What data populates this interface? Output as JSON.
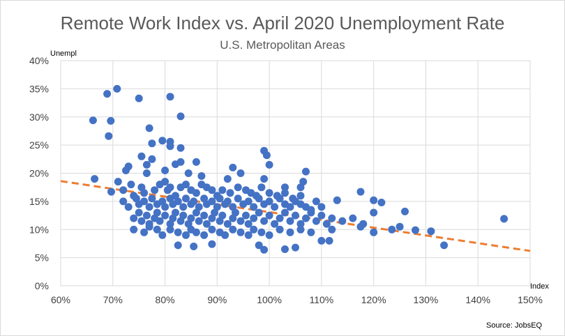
{
  "chart_data": {
    "type": "scatter",
    "title": "Remote Work Index vs. April 2020 Unemployment Rate",
    "subtitle": "U.S. Metropolitan Areas",
    "xlabel": "Index",
    "ylabel": "Unempl",
    "source": "Source: JobsEQ",
    "xlim": [
      0.6,
      1.5
    ],
    "ylim": [
      0,
      0.4
    ],
    "x_ticks": [
      "60%",
      "70%",
      "80%",
      "90%",
      "100%",
      "110%",
      "120%",
      "130%",
      "140%",
      "150%"
    ],
    "y_ticks": [
      "0%",
      "5%",
      "10%",
      "15%",
      "20%",
      "25%",
      "30%",
      "35%",
      "40%"
    ],
    "grid": true,
    "colors": {
      "points": "#4472C4",
      "trendline": "#ED7D31",
      "grid": "#d9d9d9",
      "text": "#595959"
    },
    "trendline": {
      "style": "dashed",
      "x": [
        0.6,
        1.5
      ],
      "y": [
        0.186,
        0.062
      ]
    },
    "points": [
      [
        0.662,
        0.294
      ],
      [
        0.665,
        0.19
      ],
      [
        0.689,
        0.341
      ],
      [
        0.692,
        0.266
      ],
      [
        0.696,
        0.293
      ],
      [
        0.708,
        0.35
      ],
      [
        0.697,
        0.167
      ],
      [
        0.71,
        0.185
      ],
      [
        0.75,
        0.333
      ],
      [
        0.77,
        0.28
      ],
      [
        0.81,
        0.336
      ],
      [
        0.83,
        0.301
      ],
      [
        0.795,
        0.258
      ],
      [
        0.81,
        0.256
      ],
      [
        0.81,
        0.248
      ],
      [
        0.83,
        0.245
      ],
      [
        0.775,
        0.253
      ],
      [
        0.755,
        0.23
      ],
      [
        0.775,
        0.225
      ],
      [
        0.765,
        0.215
      ],
      [
        0.83,
        0.22
      ],
      [
        0.82,
        0.216
      ],
      [
        0.725,
        0.205
      ],
      [
        0.73,
        0.212
      ],
      [
        0.765,
        0.2
      ],
      [
        0.8,
        0.205
      ],
      [
        0.845,
        0.2
      ],
      [
        0.86,
        0.22
      ],
      [
        0.87,
        0.195
      ],
      [
        0.92,
        0.19
      ],
      [
        0.93,
        0.21
      ],
      [
        0.945,
        0.2
      ],
      [
        0.99,
        0.24
      ],
      [
        0.995,
        0.232
      ],
      [
        1.0,
        0.215
      ],
      [
        0.99,
        0.19
      ],
      [
        1.07,
        0.203
      ],
      [
        1.065,
        0.185
      ],
      [
        1.06,
        0.175
      ],
      [
        1.03,
        0.175
      ],
      [
        0.72,
        0.17
      ],
      [
        0.735,
        0.18
      ],
      [
        0.74,
        0.16
      ],
      [
        0.755,
        0.175
      ],
      [
        0.76,
        0.165
      ],
      [
        0.78,
        0.17
      ],
      [
        0.79,
        0.18
      ],
      [
        0.8,
        0.185
      ],
      [
        0.805,
        0.17
      ],
      [
        0.81,
        0.175
      ],
      [
        0.82,
        0.16
      ],
      [
        0.83,
        0.175
      ],
      [
        0.84,
        0.18
      ],
      [
        0.85,
        0.17
      ],
      [
        0.86,
        0.165
      ],
      [
        0.87,
        0.18
      ],
      [
        0.88,
        0.175
      ],
      [
        0.89,
        0.17
      ],
      [
        0.9,
        0.16
      ],
      [
        0.91,
        0.17
      ],
      [
        0.925,
        0.165
      ],
      [
        0.94,
        0.175
      ],
      [
        0.955,
        0.17
      ],
      [
        0.965,
        0.165
      ],
      [
        0.975,
        0.16
      ],
      [
        0.985,
        0.175
      ],
      [
        1.0,
        0.165
      ],
      [
        1.015,
        0.16
      ],
      [
        1.03,
        0.165
      ],
      [
        1.045,
        0.155
      ],
      [
        1.06,
        0.16
      ],
      [
        0.72,
        0.15
      ],
      [
        0.73,
        0.14
      ],
      [
        0.745,
        0.155
      ],
      [
        0.75,
        0.145
      ],
      [
        0.76,
        0.15
      ],
      [
        0.77,
        0.14
      ],
      [
        0.775,
        0.155
      ],
      [
        0.785,
        0.145
      ],
      [
        0.795,
        0.15
      ],
      [
        0.8,
        0.14
      ],
      [
        0.81,
        0.155
      ],
      [
        0.815,
        0.145
      ],
      [
        0.825,
        0.15
      ],
      [
        0.835,
        0.14
      ],
      [
        0.84,
        0.155
      ],
      [
        0.85,
        0.145
      ],
      [
        0.855,
        0.15
      ],
      [
        0.865,
        0.14
      ],
      [
        0.875,
        0.155
      ],
      [
        0.88,
        0.145
      ],
      [
        0.89,
        0.15
      ],
      [
        0.9,
        0.14
      ],
      [
        0.905,
        0.155
      ],
      [
        0.915,
        0.145
      ],
      [
        0.92,
        0.15
      ],
      [
        0.93,
        0.14
      ],
      [
        0.94,
        0.155
      ],
      [
        0.95,
        0.145
      ],
      [
        0.96,
        0.15
      ],
      [
        0.97,
        0.14
      ],
      [
        0.98,
        0.155
      ],
      [
        0.99,
        0.145
      ],
      [
        1.0,
        0.15
      ],
      [
        1.01,
        0.14
      ],
      [
        1.02,
        0.155
      ],
      [
        1.03,
        0.145
      ],
      [
        1.04,
        0.14
      ],
      [
        1.05,
        0.15
      ],
      [
        1.06,
        0.145
      ],
      [
        1.07,
        0.14
      ],
      [
        1.08,
        0.135
      ],
      [
        1.09,
        0.15
      ],
      [
        1.1,
        0.14
      ],
      [
        1.13,
        0.152
      ],
      [
        1.175,
        0.167
      ],
      [
        1.2,
        0.152
      ],
      [
        1.215,
        0.148
      ],
      [
        0.74,
        0.12
      ],
      [
        0.75,
        0.13
      ],
      [
        0.755,
        0.115
      ],
      [
        0.765,
        0.125
      ],
      [
        0.77,
        0.11
      ],
      [
        0.78,
        0.12
      ],
      [
        0.785,
        0.13
      ],
      [
        0.79,
        0.115
      ],
      [
        0.8,
        0.125
      ],
      [
        0.81,
        0.11
      ],
      [
        0.815,
        0.12
      ],
      [
        0.82,
        0.13
      ],
      [
        0.83,
        0.115
      ],
      [
        0.835,
        0.125
      ],
      [
        0.845,
        0.11
      ],
      [
        0.85,
        0.12
      ],
      [
        0.86,
        0.13
      ],
      [
        0.865,
        0.115
      ],
      [
        0.875,
        0.125
      ],
      [
        0.88,
        0.11
      ],
      [
        0.89,
        0.12
      ],
      [
        0.895,
        0.13
      ],
      [
        0.905,
        0.115
      ],
      [
        0.91,
        0.125
      ],
      [
        0.92,
        0.11
      ],
      [
        0.93,
        0.12
      ],
      [
        0.935,
        0.13
      ],
      [
        0.945,
        0.115
      ],
      [
        0.955,
        0.125
      ],
      [
        0.96,
        0.11
      ],
      [
        0.97,
        0.12
      ],
      [
        0.98,
        0.13
      ],
      [
        0.99,
        0.115
      ],
      [
        1.0,
        0.125
      ],
      [
        1.01,
        0.11
      ],
      [
        1.02,
        0.12
      ],
      [
        1.03,
        0.13
      ],
      [
        1.04,
        0.115
      ],
      [
        1.05,
        0.125
      ],
      [
        1.06,
        0.11
      ],
      [
        1.07,
        0.12
      ],
      [
        1.08,
        0.13
      ],
      [
        1.09,
        0.115
      ],
      [
        1.1,
        0.125
      ],
      [
        1.11,
        0.11
      ],
      [
        1.12,
        0.12
      ],
      [
        1.14,
        0.115
      ],
      [
        1.16,
        0.12
      ],
      [
        1.18,
        0.11
      ],
      [
        1.2,
        0.13
      ],
      [
        1.26,
        0.132
      ],
      [
        1.25,
        0.105
      ],
      [
        0.74,
        0.1
      ],
      [
        0.76,
        0.095
      ],
      [
        0.77,
        0.105
      ],
      [
        0.785,
        0.1
      ],
      [
        0.795,
        0.09
      ],
      [
        0.81,
        0.1
      ],
      [
        0.825,
        0.095
      ],
      [
        0.84,
        0.09
      ],
      [
        0.85,
        0.1
      ],
      [
        0.86,
        0.095
      ],
      [
        0.875,
        0.09
      ],
      [
        0.89,
        0.1
      ],
      [
        0.905,
        0.095
      ],
      [
        0.915,
        0.09
      ],
      [
        0.93,
        0.1
      ],
      [
        0.945,
        0.095
      ],
      [
        0.96,
        0.09
      ],
      [
        0.97,
        0.1
      ],
      [
        0.985,
        0.095
      ],
      [
        1.0,
        0.09
      ],
      [
        1.02,
        0.1
      ],
      [
        1.04,
        0.095
      ],
      [
        1.06,
        0.1
      ],
      [
        1.08,
        0.095
      ],
      [
        1.1,
        0.08
      ],
      [
        1.115,
        0.08
      ],
      [
        1.12,
        0.1
      ],
      [
        1.175,
        0.105
      ],
      [
        1.2,
        0.095
      ],
      [
        1.235,
        0.1
      ],
      [
        1.28,
        0.099
      ],
      [
        1.31,
        0.097
      ],
      [
        0.825,
        0.072
      ],
      [
        0.855,
        0.07
      ],
      [
        0.89,
        0.074
      ],
      [
        0.98,
        0.072
      ],
      [
        0.99,
        0.064
      ],
      [
        1.03,
        0.065
      ],
      [
        1.05,
        0.068
      ],
      [
        1.335,
        0.072
      ],
      [
        1.45,
        0.119
      ]
    ]
  }
}
